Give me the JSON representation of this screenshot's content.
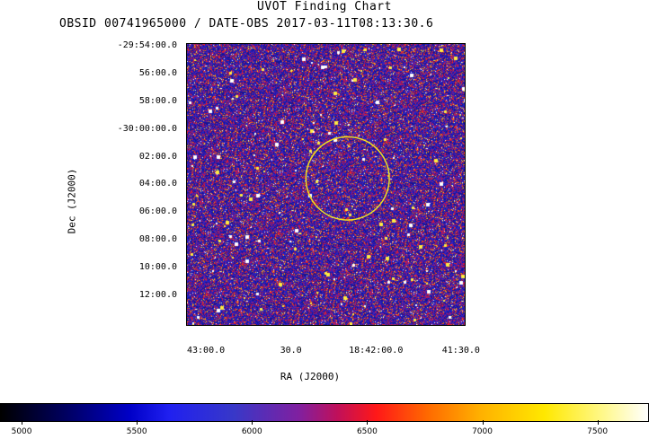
{
  "header": {
    "title": "UVOT Finding Chart",
    "subtitle": "OBSID 00741965000 / DATE-OBS 2017-03-11T08:13:30.6"
  },
  "colors": {
    "circle": "#f0e020",
    "panel_background": "#1a1ab4"
  },
  "chart_data": {
    "type": "heatmap",
    "title": "UVOT Finding Chart",
    "xlabel": "RA (J2000)",
    "ylabel": "Dec (J2000)",
    "x_ticks": [
      "43:00.0",
      "30.0",
      "18:42:00.0",
      "41:30.0"
    ],
    "y_ticks": [
      "-29:54:00.0",
      "56:00.0",
      "58:00.0",
      "-30:00:00.0",
      "02:00.0",
      "04:00.0",
      "06:00.0",
      "08:00.0",
      "10:00.0",
      "12:00.0"
    ],
    "xlim": [
      "18:43:07",
      "18:41:29"
    ],
    "ylim": [
      "-30:14:00",
      "-29:53:45"
    ],
    "circle": {
      "center_ra": "18:42:10",
      "center_dec": "-30:03:30",
      "radius_arcmin": 3.0
    },
    "colorbar": {
      "ticks": [
        5000,
        5500,
        6000,
        6500,
        7000,
        7500
      ],
      "range": [
        4910,
        7720
      ],
      "colormap": "black-blue-purple-red-yellow-white"
    }
  }
}
